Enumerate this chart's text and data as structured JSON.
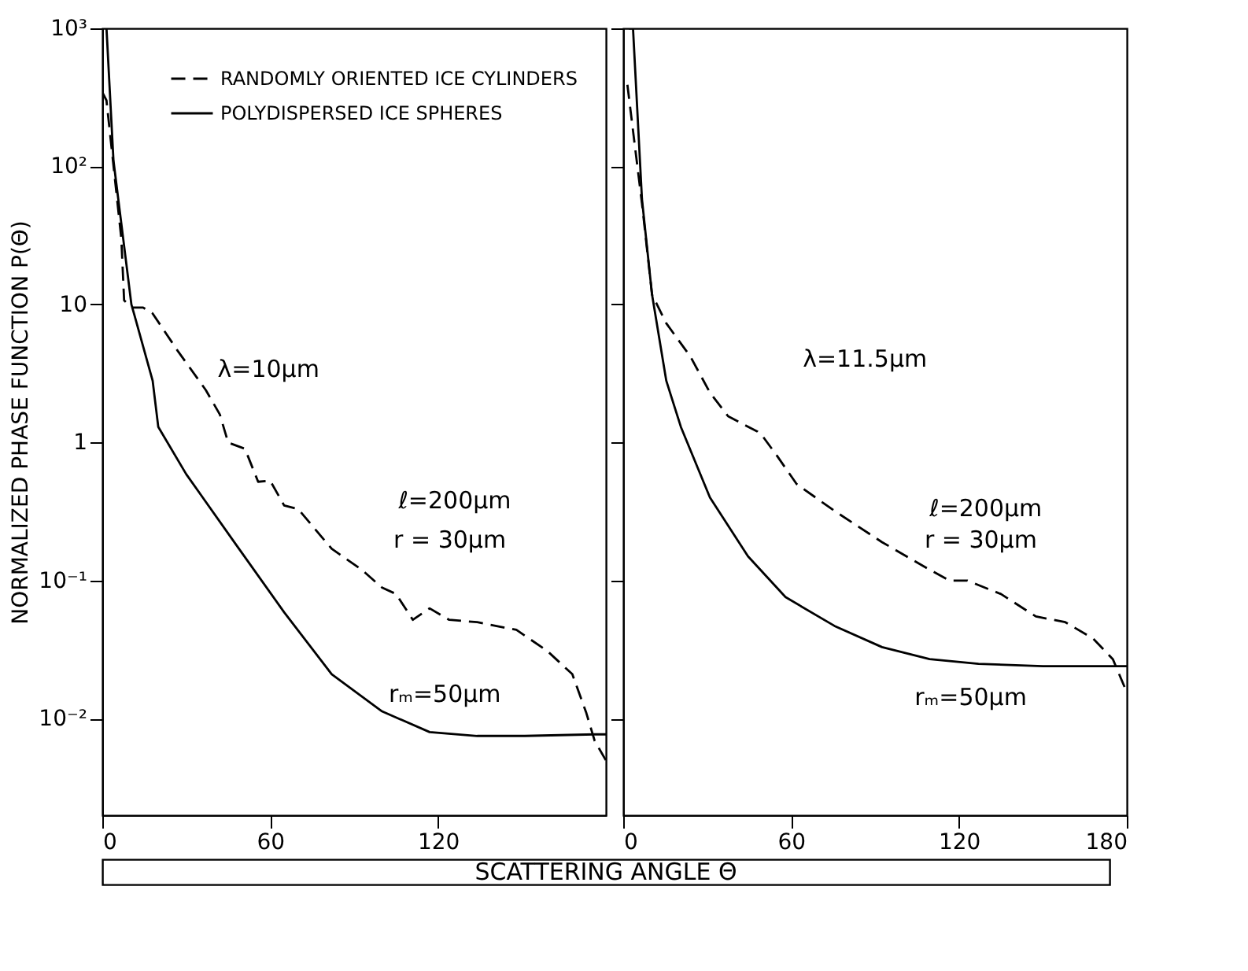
{
  "chart_data": [
    {
      "type": "line",
      "ylabel": "NORMALIZED PHASE FUNCTION P(Θ)",
      "xlabel": "SCATTERING ANGLE Θ",
      "xlim": [
        0,
        180
      ],
      "xticks": [
        0,
        60,
        120
      ],
      "ylim": [
        0.002,
        1000
      ],
      "yticks": [
        {
          "value": 1000,
          "label": "10³"
        },
        {
          "value": 100,
          "label": "10²"
        },
        10,
        1,
        {
          "value": 0.1,
          "label": "10⁻¹"
        },
        {
          "value": 0.01,
          "label": "10⁻²"
        }
      ],
      "log": true,
      "grid": false,
      "legend": "top right",
      "marker": "none",
      "series": [
        {
          "name": "RANDOMLY ORIENTED ICE CYLINDERS",
          "color": "#000000",
          "line_style": "dashed",
          "x": [
            0,
            1.5,
            6.8,
            7.8,
            10.4,
            14.6,
            18,
            27,
            37,
            42,
            45,
            51,
            55.7,
            60,
            65,
            70,
            82,
            92.7,
            100,
            105,
            111,
            117,
            124,
            134,
            148,
            159,
            168,
            173,
            176,
            180
          ],
          "values": [
            345,
            300,
            30,
            10.7,
            9.5,
            9.5,
            8.6,
            4.6,
            2.4,
            1.6,
            1.0,
            0.9,
            0.52,
            0.53,
            0.35,
            0.33,
            0.17,
            0.12,
            0.089,
            0.08,
            0.052,
            0.063,
            0.052,
            0.05,
            0.044,
            0.031,
            0.021,
            0.011,
            0.0069,
            0.005
          ]
        },
        {
          "name": "POLYDISPERSED ICE SPHERES",
          "color": "#000000",
          "line_style": "solid",
          "x": [
            1.5,
            4,
            10.4,
            11.4,
            18,
            20,
            30,
            48,
            65,
            82,
            100,
            117,
            134,
            151,
            176,
            180
          ],
          "values": [
            1000,
            110,
            10,
            8.5,
            2.8,
            1.3,
            0.59,
            0.18,
            0.059,
            0.021,
            0.0113,
            0.008,
            0.0075,
            0.0075,
            0.0077,
            0.0077
          ]
        }
      ],
      "annotations": [
        "λ=10μm",
        "ℓ=200μm",
        "r = 30μm",
        "rₘ=50μm"
      ]
    },
    {
      "type": "line",
      "xlim": [
        0,
        180
      ],
      "xticks": [
        0,
        60,
        120,
        180
      ],
      "ylim": [
        0.002,
        1000
      ],
      "yticks": [
        {
          "value": 1000,
          "label": null
        },
        {
          "value": 100,
          "label": null
        },
        {
          "value": 10,
          "label": null
        },
        {
          "value": 1,
          "label": null
        },
        {
          "value": 0.1,
          "label": null
        },
        {
          "value": 0.01,
          "label": null
        }
      ],
      "log": true,
      "grid": false,
      "marker": "none",
      "tick_labels": "x",
      "series": [
        {
          "color": "#000000",
          "line_style": "dashed",
          "x": [
            1.5,
            4,
            6.7,
            10.3,
            15.4,
            24,
            31,
            37.5,
            48,
            50,
            55,
            62,
            75.5,
            92.5,
            109.5,
            116.7,
            123,
            135,
            147.5,
            158,
            168,
            175,
            180
          ],
          "values": [
            390,
            150,
            54,
            11.8,
            7.3,
            4.2,
            2.3,
            1.55,
            1.2,
            1.1,
            0.8,
            0.5,
            0.32,
            0.19,
            0.12,
            0.1,
            0.1,
            0.08,
            0.055,
            0.05,
            0.038,
            0.027,
            0.0155
          ]
        },
        {
          "color": "#000000",
          "line_style": "solid",
          "x": [
            2,
            3.5,
            6.7,
            10.3,
            15.4,
            20.6,
            31,
            44.6,
            58,
            75.5,
            92.5,
            109.5,
            127,
            150,
            180
          ],
          "values": [
            1000,
            1000,
            58,
            11.8,
            2.8,
            1.3,
            0.4,
            0.15,
            0.076,
            0.047,
            0.033,
            0.027,
            0.025,
            0.024,
            0.024
          ]
        }
      ],
      "annotations": [
        "λ=11.5μm",
        "ℓ=200μm",
        "r = 30μm",
        "rₘ=50μm"
      ]
    }
  ]
}
